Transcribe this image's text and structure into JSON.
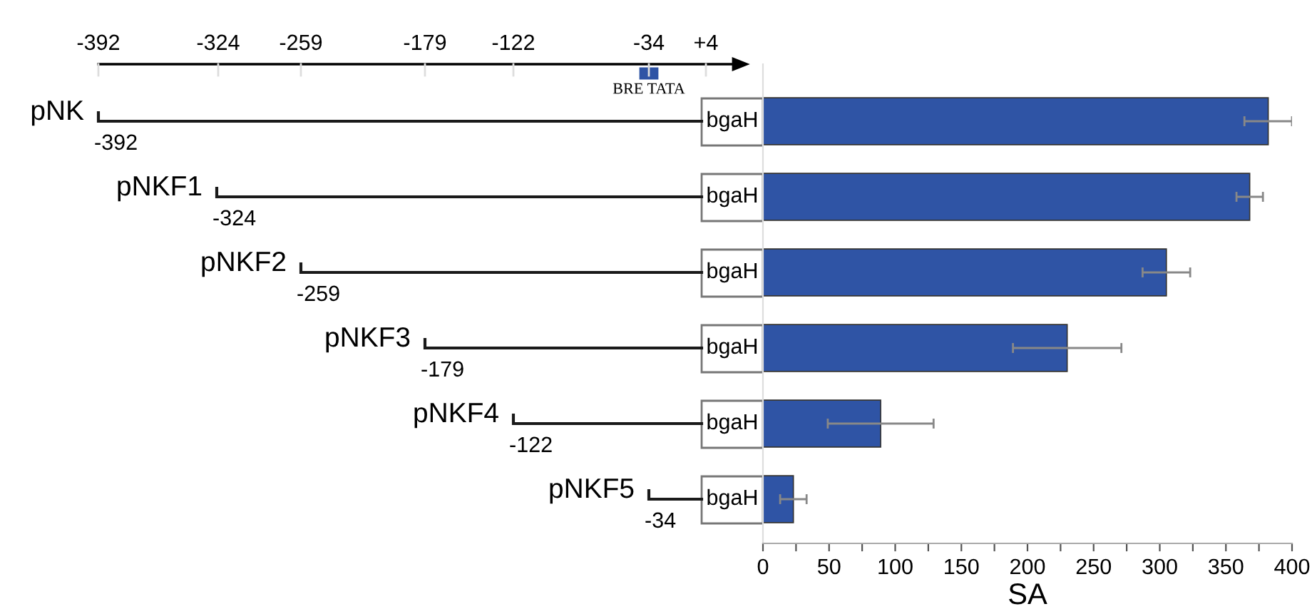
{
  "chart_data": [
    {
      "type": "other",
      "annotations": [
        "-392",
        "-324",
        "-259",
        "-179",
        "-122",
        "-34",
        "+4",
        "BRE TATA",
        "pNK",
        "pNKF1",
        "pNKF2",
        "pNKF3",
        "pNKF4",
        "pNKF5",
        "-392",
        "-324",
        "-259",
        "-179",
        "-122",
        "-34",
        "bgaH"
      ]
    },
    {
      "type": "bar",
      "orientation": "horizontal",
      "categories": [
        null,
        null,
        null,
        null,
        null,
        null
      ],
      "values": [
        382,
        368,
        305,
        230,
        89,
        23
      ],
      "errors": [
        18,
        10,
        18,
        41,
        40,
        10
      ],
      "color": "#2f54a5",
      "xlim": [
        0,
        400
      ],
      "xticks": [
        0,
        {
          "value": 25,
          "label": null
        },
        50,
        {
          "value": 75,
          "label": null
        },
        100,
        {
          "value": 125,
          "label": null
        },
        150,
        {
          "value": 175,
          "label": null
        },
        200,
        {
          "value": 225,
          "label": null
        },
        250,
        {
          "value": 275,
          "label": null
        },
        300,
        {
          "value": 325,
          "label": null
        },
        350,
        {
          "value": 375,
          "label": null
        },
        400
      ],
      "xlabel": "SA",
      "tick_labels": "x"
    }
  ]
}
